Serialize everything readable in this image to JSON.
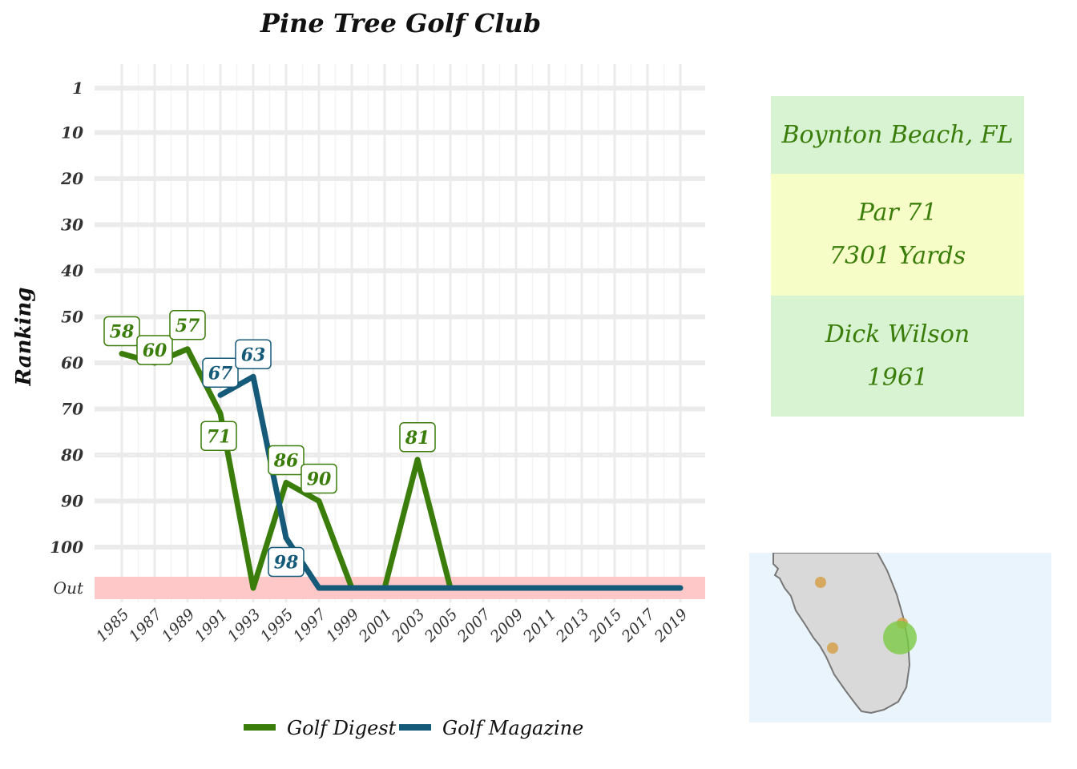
{
  "chart_data": {
    "type": "line",
    "title": "Pine Tree Golf Club",
    "ylabel": "Ranking",
    "xlabel": "",
    "x_ticks": [
      "1985",
      "1987",
      "1989",
      "1991",
      "1993",
      "1995",
      "1997",
      "1999",
      "2001",
      "2003",
      "2005",
      "2007",
      "2009",
      "2011",
      "2013",
      "2015",
      "2017",
      "2019"
    ],
    "y_ticks": [
      "1",
      "10",
      "20",
      "30",
      "40",
      "50",
      "60",
      "70",
      "80",
      "90",
      "100",
      "Out"
    ],
    "y_reversed": true,
    "out_band_label": "Out",
    "grid": true,
    "legend_position": "bottom",
    "series": [
      {
        "name": "Golf Digest",
        "color": "#3a7d0a",
        "points": [
          {
            "x": 1985,
            "y": 58,
            "label": "58"
          },
          {
            "x": 1987,
            "y": 60,
            "label": "60"
          },
          {
            "x": 1989,
            "y": 57,
            "label": "57"
          },
          {
            "x": 1991,
            "y": 71,
            "label": "71"
          },
          {
            "x": 1993,
            "y": "Out"
          },
          {
            "x": 1995,
            "y": 86,
            "label": "86"
          },
          {
            "x": 1997,
            "y": 90,
            "label": "90"
          },
          {
            "x": 1999,
            "y": "Out"
          },
          {
            "x": 2001,
            "y": "Out"
          },
          {
            "x": 2003,
            "y": 81,
            "label": "81"
          },
          {
            "x": 2005,
            "y": "Out"
          }
        ]
      },
      {
        "name": "Golf Magazine",
        "color": "#155a78",
        "points": [
          {
            "x": 1991,
            "y": 67,
            "label": "67"
          },
          {
            "x": 1993,
            "y": 63,
            "label": "63"
          },
          {
            "x": 1995,
            "y": 98,
            "label": "98"
          },
          {
            "x": 1997,
            "y": "Out"
          },
          {
            "x": 1999,
            "y": "Out"
          },
          {
            "x": 2001,
            "y": "Out"
          },
          {
            "x": 2003,
            "y": "Out"
          },
          {
            "x": 2005,
            "y": "Out"
          },
          {
            "x": 2007,
            "y": "Out"
          },
          {
            "x": 2009,
            "y": "Out"
          },
          {
            "x": 2011,
            "y": "Out"
          },
          {
            "x": 2013,
            "y": "Out"
          },
          {
            "x": 2015,
            "y": "Out"
          },
          {
            "x": 2017,
            "y": "Out"
          },
          {
            "x": 2019,
            "y": "Out"
          }
        ]
      }
    ]
  },
  "info": {
    "location": "Boynton Beach, FL",
    "par": "Par 71",
    "yards": "7301 Yards",
    "architect": "Dick Wilson",
    "year": "1961",
    "colors": {
      "green_box": "#d8f3d2",
      "yellow_box": "#f6fdc6",
      "text": "#3a7d0a"
    }
  },
  "map": {
    "region": "Florida",
    "highlight_color": "#7ac943",
    "other_marker_color": "#d4a04a",
    "water_color": "#eaf4fc",
    "land_color": "#d9d9d9"
  }
}
